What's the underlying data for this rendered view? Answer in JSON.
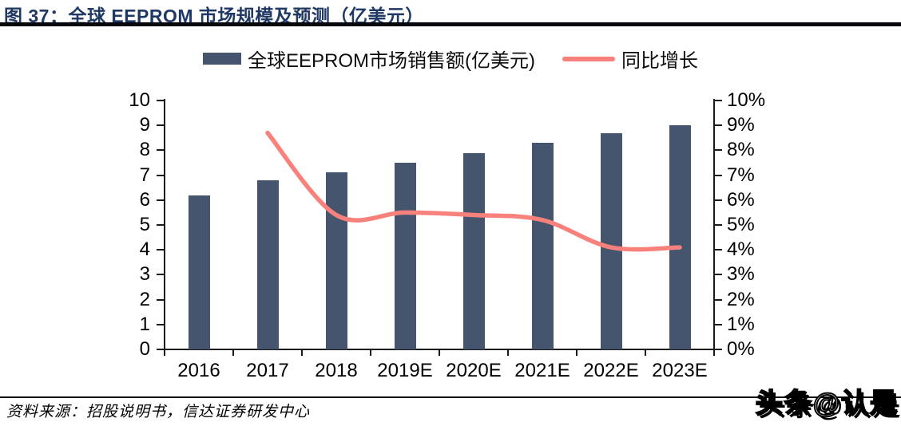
{
  "figure": {
    "title": "图 37：全球 EEPROM 市场规模及预测（亿美元）",
    "source_note": "资料来源：招股说明书，信达证券研发中心",
    "watermark": "头条@认是"
  },
  "colors": {
    "title_navy": "#1F3864",
    "bar_navy": "#46556E",
    "line_salmon": "#F9817C",
    "axis_black": "#1A1A1A"
  },
  "legend": {
    "items": [
      {
        "label": "全球EEPROM市场销售额(亿美元)",
        "marker": "bar-swatch"
      },
      {
        "label": "同比增长",
        "marker": "line-swatch"
      }
    ]
  },
  "chart_data": {
    "type": "bar",
    "title": "全球 EEPROM 市场规模及预测（亿美元）",
    "categories": [
      "2016",
      "2017",
      "2018",
      "2019E",
      "2020E",
      "2021E",
      "2022E",
      "2023E"
    ],
    "series": [
      {
        "name": "全球EEPROM市场销售额(亿美元)",
        "type": "bar",
        "axis": "left",
        "color": "#46556E",
        "values": [
          6.2,
          6.8,
          7.1,
          7.5,
          7.9,
          8.3,
          8.7,
          9.0
        ]
      },
      {
        "name": "同比增长",
        "type": "line",
        "axis": "right",
        "unit": "%",
        "color": "#F9817C",
        "values": [
          null,
          8.7,
          5.4,
          5.5,
          5.4,
          5.2,
          4.1,
          4.1
        ]
      }
    ],
    "left_axis": {
      "min": 0,
      "max": 10,
      "step": 1,
      "ticks": [
        "0",
        "1",
        "2",
        "3",
        "4",
        "5",
        "6",
        "7",
        "8",
        "9",
        "10"
      ]
    },
    "right_axis": {
      "min": 0,
      "max": 10,
      "step": 1,
      "unit": "%",
      "ticks": [
        "0%",
        "1%",
        "2%",
        "3%",
        "4%",
        "5%",
        "6%",
        "7%",
        "8%",
        "9%",
        "10%"
      ]
    },
    "grid": false,
    "legend_position": "top",
    "xlabel": "",
    "ylabel": ""
  }
}
